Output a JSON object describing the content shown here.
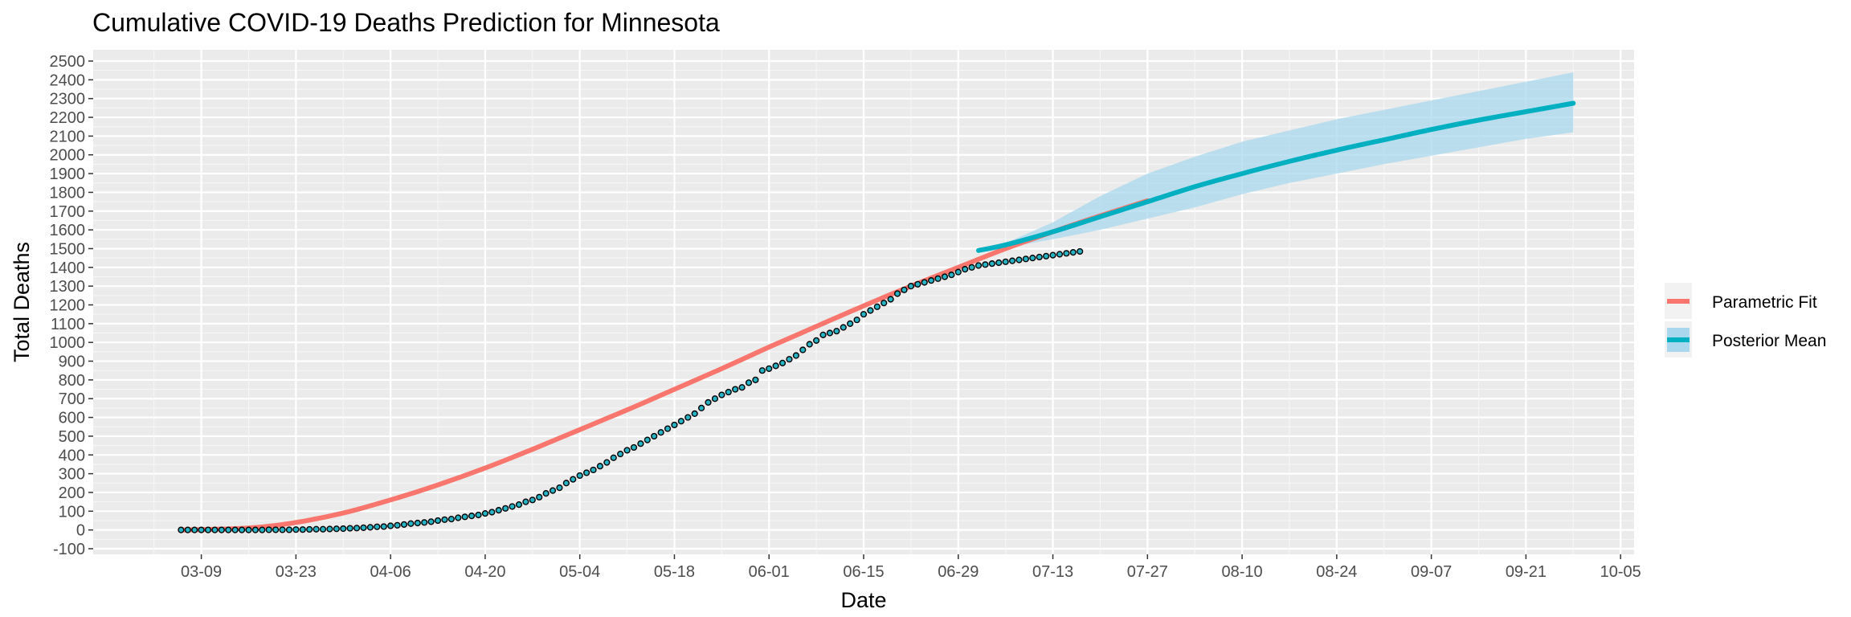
{
  "chart_data": {
    "type": "line",
    "title": "Cumulative COVID-19 Deaths Prediction for Minnesota",
    "xlabel": "Date",
    "ylabel": "Total Deaths",
    "xlim": [
      "2020-02-22",
      "2020-10-07"
    ],
    "ylim": [
      -130,
      2560
    ],
    "x_ticks": [
      "03-09",
      "03-23",
      "04-06",
      "04-20",
      "05-04",
      "05-18",
      "06-01",
      "06-15",
      "06-29",
      "07-13",
      "07-27",
      "08-10",
      "08-24",
      "09-07",
      "09-21",
      "10-05"
    ],
    "y_ticks": [
      -100,
      0,
      100,
      200,
      300,
      400,
      500,
      600,
      700,
      800,
      900,
      1000,
      1100,
      1200,
      1300,
      1400,
      1500,
      1600,
      1700,
      1800,
      1900,
      2000,
      2100,
      2200,
      2300,
      2400,
      2500
    ],
    "grid": true,
    "legend_position": "right",
    "series": [
      {
        "name": "Parametric Fit",
        "color": "#F8766D",
        "x": [
          "2020-03-06",
          "2020-03-16",
          "2020-03-23",
          "2020-03-30",
          "2020-04-06",
          "2020-04-13",
          "2020-04-20",
          "2020-04-27",
          "2020-05-04",
          "2020-05-11",
          "2020-05-18",
          "2020-05-25",
          "2020-06-01",
          "2020-06-08",
          "2020-06-15",
          "2020-06-22",
          "2020-06-29",
          "2020-07-06",
          "2020-07-13",
          "2020-07-20",
          "2020-07-27"
        ],
        "values": [
          0,
          10,
          40,
          90,
          160,
          240,
          330,
          430,
          535,
          640,
          750,
          860,
          975,
          1085,
          1195,
          1300,
          1400,
          1500,
          1590,
          1675,
          1755
        ]
      },
      {
        "name": "Posterior Mean",
        "color": "#00B0C0",
        "x": [
          "2020-07-02",
          "2020-07-06",
          "2020-07-13",
          "2020-07-20",
          "2020-07-27",
          "2020-08-03",
          "2020-08-10",
          "2020-08-17",
          "2020-08-24",
          "2020-08-31",
          "2020-09-07",
          "2020-09-14",
          "2020-09-21",
          "2020-09-28"
        ],
        "values": [
          1490,
          1520,
          1590,
          1670,
          1750,
          1830,
          1900,
          1965,
          2025,
          2080,
          2135,
          2185,
          2230,
          2275
        ]
      }
    ],
    "credible_band": {
      "color": "#A9D8EE",
      "x": [
        "2020-07-02",
        "2020-07-06",
        "2020-07-13",
        "2020-07-20",
        "2020-07-27",
        "2020-08-03",
        "2020-08-10",
        "2020-08-17",
        "2020-08-24",
        "2020-08-31",
        "2020-09-07",
        "2020-09-14",
        "2020-09-21",
        "2020-09-28"
      ],
      "lower": [
        1490,
        1505,
        1550,
        1600,
        1660,
        1720,
        1790,
        1850,
        1900,
        1950,
        1995,
        2040,
        2085,
        2120
      ],
      "upper": [
        1490,
        1530,
        1640,
        1780,
        1900,
        1990,
        2070,
        2130,
        2190,
        2240,
        2290,
        2340,
        2390,
        2440
      ]
    },
    "observed": {
      "name": "Observed",
      "fill": "#26B3C4",
      "stroke": "#000000",
      "start": "2020-03-06",
      "values": [
        0,
        0,
        0,
        0,
        0,
        0,
        0,
        0,
        0,
        0,
        0,
        0,
        0,
        1,
        1,
        1,
        1,
        2,
        2,
        3,
        4,
        4,
        5,
        6,
        7,
        9,
        10,
        12,
        14,
        17,
        18,
        22,
        25,
        29,
        34,
        37,
        40,
        44,
        50,
        55,
        58,
        65,
        70,
        75,
        80,
        88,
        95,
        105,
        115,
        125,
        135,
        150,
        160,
        175,
        195,
        210,
        225,
        250,
        270,
        290,
        305,
        320,
        340,
        360,
        385,
        405,
        425,
        440,
        460,
        480,
        500,
        520,
        540,
        560,
        580,
        600,
        620,
        650,
        680,
        700,
        720,
        735,
        750,
        760,
        785,
        800,
        850,
        860,
        875,
        890,
        910,
        930,
        960,
        990,
        1010,
        1040,
        1050,
        1060,
        1080,
        1100,
        1120,
        1150,
        1170,
        1190,
        1210,
        1230,
        1260,
        1280,
        1300,
        1310,
        1320,
        1330,
        1340,
        1350,
        1360,
        1375,
        1390,
        1400,
        1410,
        1415,
        1420,
        1425,
        1430,
        1435,
        1440,
        1445,
        1450,
        1455,
        1460,
        1465,
        1470,
        1475,
        1480,
        1485
      ]
    }
  }
}
